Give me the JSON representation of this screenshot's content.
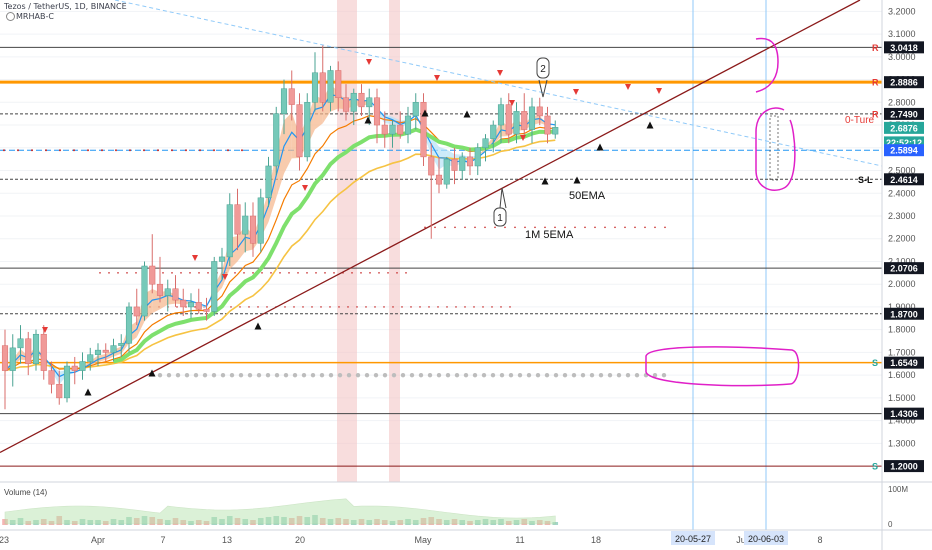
{
  "header": {
    "symbol_line": "Tezos / TetherUS, 1D, BINANCE",
    "indicator": "MRHAB-C"
  },
  "colors": {
    "up": "#26a69a",
    "down": "#ef5350",
    "ema_blue": "#2196f3",
    "ema_orange": "#f57c00",
    "ema_yellow": "#f6c343",
    "trendline": "#8b1a1a",
    "resistance": "#ff9800",
    "annotation": "#e020c8",
    "label_bg": "#131722",
    "current_bg": "#2962ff"
  },
  "chart_data": {
    "type": "candlestick",
    "title": "Tezos / TetherUS, 1D, BINANCE",
    "y_axis": {
      "min": 1.13,
      "max": 3.25,
      "ticks": [
        "3.2000",
        "3.1000",
        "3.0000",
        "2.9000",
        "2.8000",
        "2.7000",
        "2.6000",
        "2.5000",
        "2.4000",
        "2.3000",
        "2.2000",
        "2.1000",
        "2.0000",
        "1.9000",
        "1.8000",
        "1.7000",
        "1.6000",
        "1.5000",
        "1.4000",
        "1.3000"
      ]
    },
    "x_axis": {
      "ticks": [
        "23",
        "Apr",
        "7",
        "13",
        "20",
        "May",
        "11",
        "18",
        "Ju",
        "8"
      ]
    },
    "price_labels": [
      {
        "price": 3.0418,
        "text": "3.0418",
        "style": "dark",
        "tag": "R"
      },
      {
        "price": 2.8886,
        "text": "2.8886",
        "style": "dark",
        "tag": "R"
      },
      {
        "price": 2.749,
        "text": "2.7490",
        "style": "dark",
        "tag": "R"
      },
      {
        "price": 2.6876,
        "text": "2.6876",
        "style": "teal",
        "tag": ""
      },
      {
        "price": 2.6237,
        "text": "22:52:12",
        "style": "teal",
        "tag": ""
      },
      {
        "price": 2.5894,
        "text": "2.5894",
        "style": "blue",
        "tag": ""
      },
      {
        "price": 2.4614,
        "text": "2.4614",
        "style": "dark",
        "tag": "S-L"
      },
      {
        "price": 2.0706,
        "text": "2.0706",
        "style": "dark",
        "tag": ""
      },
      {
        "price": 1.87,
        "text": "1.8700",
        "style": "dark",
        "tag": ""
      },
      {
        "price": 1.6549,
        "text": "1.6549",
        "style": "dark",
        "tag": "S"
      },
      {
        "price": 1.4306,
        "text": "1.4306",
        "style": "dark",
        "tag": ""
      },
      {
        "price": 1.2,
        "text": "1.2000",
        "style": "dark",
        "tag": "S"
      }
    ],
    "annotations": {
      "zero_line_text": "0-Ture",
      "ema50": "50EMA",
      "ema_1m": "1M 5EMA",
      "callout_1": "1",
      "callout_2": "2"
    },
    "candles": [
      {
        "o": 1.73,
        "h": 1.8,
        "l": 1.45,
        "c": 1.62
      },
      {
        "o": 1.62,
        "h": 1.78,
        "l": 1.55,
        "c": 1.72
      },
      {
        "o": 1.72,
        "h": 1.82,
        "l": 1.65,
        "c": 1.76
      },
      {
        "o": 1.76,
        "h": 1.79,
        "l": 1.6,
        "c": 1.65
      },
      {
        "o": 1.65,
        "h": 1.8,
        "l": 1.62,
        "c": 1.78
      },
      {
        "o": 1.78,
        "h": 1.82,
        "l": 1.58,
        "c": 1.62
      },
      {
        "o": 1.62,
        "h": 1.66,
        "l": 1.52,
        "c": 1.56
      },
      {
        "o": 1.56,
        "h": 1.62,
        "l": 1.47,
        "c": 1.5
      },
      {
        "o": 1.5,
        "h": 1.66,
        "l": 1.48,
        "c": 1.64
      },
      {
        "o": 1.64,
        "h": 1.68,
        "l": 1.56,
        "c": 1.62
      },
      {
        "o": 1.62,
        "h": 1.7,
        "l": 1.58,
        "c": 1.66
      },
      {
        "o": 1.66,
        "h": 1.72,
        "l": 1.62,
        "c": 1.69
      },
      {
        "o": 1.69,
        "h": 1.74,
        "l": 1.64,
        "c": 1.71
      },
      {
        "o": 1.71,
        "h": 1.74,
        "l": 1.66,
        "c": 1.7
      },
      {
        "o": 1.7,
        "h": 1.76,
        "l": 1.66,
        "c": 1.73
      },
      {
        "o": 1.73,
        "h": 1.78,
        "l": 1.68,
        "c": 1.74
      },
      {
        "o": 1.74,
        "h": 1.92,
        "l": 1.7,
        "c": 1.9
      },
      {
        "o": 1.9,
        "h": 1.98,
        "l": 1.82,
        "c": 1.86
      },
      {
        "o": 1.86,
        "h": 2.1,
        "l": 1.84,
        "c": 2.08
      },
      {
        "o": 2.08,
        "h": 2.22,
        "l": 1.96,
        "c": 2.0
      },
      {
        "o": 2.0,
        "h": 2.12,
        "l": 1.92,
        "c": 1.95
      },
      {
        "o": 1.95,
        "h": 2.02,
        "l": 1.88,
        "c": 1.98
      },
      {
        "o": 1.98,
        "h": 2.04,
        "l": 1.9,
        "c": 1.93
      },
      {
        "o": 1.93,
        "h": 1.98,
        "l": 1.86,
        "c": 1.9
      },
      {
        "o": 1.9,
        "h": 1.96,
        "l": 1.85,
        "c": 1.92
      },
      {
        "o": 1.92,
        "h": 1.98,
        "l": 1.87,
        "c": 1.89
      },
      {
        "o": 1.89,
        "h": 1.94,
        "l": 1.84,
        "c": 1.88
      },
      {
        "o": 1.88,
        "h": 2.12,
        "l": 1.86,
        "c": 2.1
      },
      {
        "o": 2.1,
        "h": 2.16,
        "l": 2.02,
        "c": 2.12
      },
      {
        "o": 2.12,
        "h": 2.4,
        "l": 2.08,
        "c": 2.35
      },
      {
        "o": 2.35,
        "h": 2.42,
        "l": 2.15,
        "c": 2.22
      },
      {
        "o": 2.22,
        "h": 2.36,
        "l": 2.14,
        "c": 2.3
      },
      {
        "o": 2.3,
        "h": 2.36,
        "l": 2.12,
        "c": 2.18
      },
      {
        "o": 2.18,
        "h": 2.42,
        "l": 2.14,
        "c": 2.38
      },
      {
        "o": 2.38,
        "h": 2.56,
        "l": 2.34,
        "c": 2.52
      },
      {
        "o": 2.52,
        "h": 2.78,
        "l": 2.48,
        "c": 2.75
      },
      {
        "o": 2.75,
        "h": 2.9,
        "l": 2.66,
        "c": 2.86
      },
      {
        "o": 2.86,
        "h": 2.94,
        "l": 2.72,
        "c": 2.79
      },
      {
        "o": 2.79,
        "h": 2.84,
        "l": 2.5,
        "c": 2.56
      },
      {
        "o": 2.56,
        "h": 2.84,
        "l": 2.54,
        "c": 2.8
      },
      {
        "o": 2.8,
        "h": 3.02,
        "l": 2.76,
        "c": 2.93
      },
      {
        "o": 2.93,
        "h": 3.05,
        "l": 2.76,
        "c": 2.8
      },
      {
        "o": 2.8,
        "h": 2.96,
        "l": 2.76,
        "c": 2.94
      },
      {
        "o": 2.94,
        "h": 2.98,
        "l": 2.76,
        "c": 2.82
      },
      {
        "o": 2.82,
        "h": 2.88,
        "l": 2.72,
        "c": 2.76
      },
      {
        "o": 2.76,
        "h": 2.86,
        "l": 2.7,
        "c": 2.84
      },
      {
        "o": 2.84,
        "h": 2.88,
        "l": 2.74,
        "c": 2.78
      },
      {
        "o": 2.78,
        "h": 2.86,
        "l": 2.7,
        "c": 2.82
      },
      {
        "o": 2.82,
        "h": 2.86,
        "l": 2.62,
        "c": 2.7
      },
      {
        "o": 2.7,
        "h": 2.76,
        "l": 2.6,
        "c": 2.66
      },
      {
        "o": 2.66,
        "h": 2.72,
        "l": 2.6,
        "c": 2.7
      },
      {
        "o": 2.7,
        "h": 2.76,
        "l": 2.64,
        "c": 2.66
      },
      {
        "o": 2.66,
        "h": 2.78,
        "l": 2.62,
        "c": 2.74
      },
      {
        "o": 2.74,
        "h": 2.84,
        "l": 2.68,
        "c": 2.8
      },
      {
        "o": 2.8,
        "h": 2.84,
        "l": 2.52,
        "c": 2.56
      },
      {
        "o": 2.56,
        "h": 2.62,
        "l": 2.2,
        "c": 2.48
      },
      {
        "o": 2.48,
        "h": 2.56,
        "l": 2.4,
        "c": 2.44
      },
      {
        "o": 2.44,
        "h": 2.56,
        "l": 2.42,
        "c": 2.55
      },
      {
        "o": 2.55,
        "h": 2.6,
        "l": 2.44,
        "c": 2.5
      },
      {
        "o": 2.5,
        "h": 2.58,
        "l": 2.46,
        "c": 2.56
      },
      {
        "o": 2.56,
        "h": 2.6,
        "l": 2.48,
        "c": 2.52
      },
      {
        "o": 2.52,
        "h": 2.62,
        "l": 2.48,
        "c": 2.6
      },
      {
        "o": 2.6,
        "h": 2.66,
        "l": 2.54,
        "c": 2.64
      },
      {
        "o": 2.64,
        "h": 2.72,
        "l": 2.58,
        "c": 2.7
      },
      {
        "o": 2.7,
        "h": 2.82,
        "l": 2.62,
        "c": 2.79
      },
      {
        "o": 2.79,
        "h": 2.84,
        "l": 2.62,
        "c": 2.66
      },
      {
        "o": 2.66,
        "h": 2.8,
        "l": 2.62,
        "c": 2.76
      },
      {
        "o": 2.76,
        "h": 2.84,
        "l": 2.64,
        "c": 2.68
      },
      {
        "o": 2.68,
        "h": 2.82,
        "l": 2.62,
        "c": 2.78
      },
      {
        "o": 2.78,
        "h": 2.82,
        "l": 2.7,
        "c": 2.74
      },
      {
        "o": 2.74,
        "h": 2.78,
        "l": 2.62,
        "c": 2.66
      },
      {
        "o": 2.66,
        "h": 2.72,
        "l": 2.64,
        "c": 2.69
      }
    ],
    "volume_pane": {
      "label": "Volume (14)",
      "ticks": [
        "100M",
        "0"
      ]
    },
    "date_labels": [
      "20-05-27",
      "20-06-03"
    ]
  }
}
